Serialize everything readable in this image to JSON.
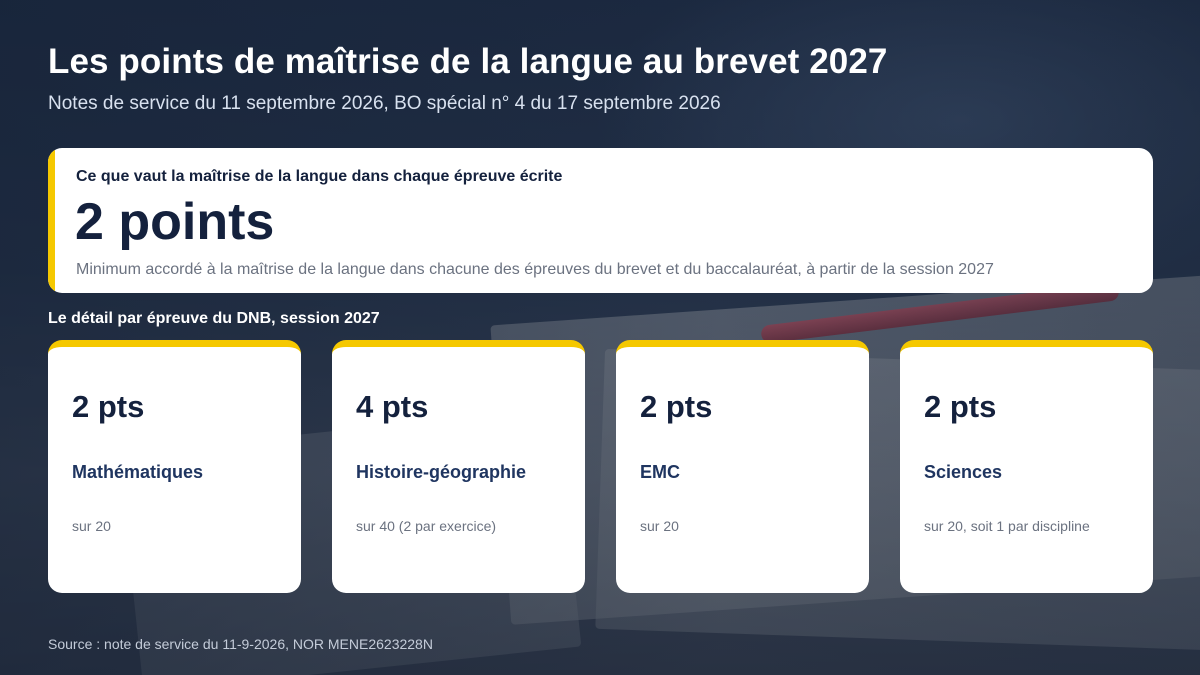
{
  "header": {
    "title": "Les points de maîtrise de la langue au brevet 2027",
    "subtitle": "Notes de service du 11 septembre 2026, BO spécial n° 4 du 17 septembre 2026"
  },
  "highlight": {
    "label": "Ce que vaut la maîtrise de la langue dans chaque épreuve écrite",
    "value": "2 points",
    "description": "Minimum accordé à la maîtrise de la langue dans chacune des épreuves du brevet et du baccalauréat, à partir de la session 2027"
  },
  "detail": {
    "label": "Le détail par épreuve du DNB, session 2027",
    "cards": [
      {
        "points": "2 pts",
        "subject": "Mathématiques",
        "note": "sur 20"
      },
      {
        "points": "4 pts",
        "subject": "Histoire-géographie",
        "note": "sur 40 (2 par exercice)"
      },
      {
        "points": "2 pts",
        "subject": "EMC",
        "note": "sur 20"
      },
      {
        "points": "2 pts",
        "subject": "Sciences",
        "note": "sur 20, soit 1 par discipline"
      }
    ]
  },
  "source": "Source : note de service du 11-9-2026, NOR MENE2623228N",
  "colors": {
    "accent": "#f5c800",
    "navy": "#14213d",
    "subject": "#1f3560"
  }
}
